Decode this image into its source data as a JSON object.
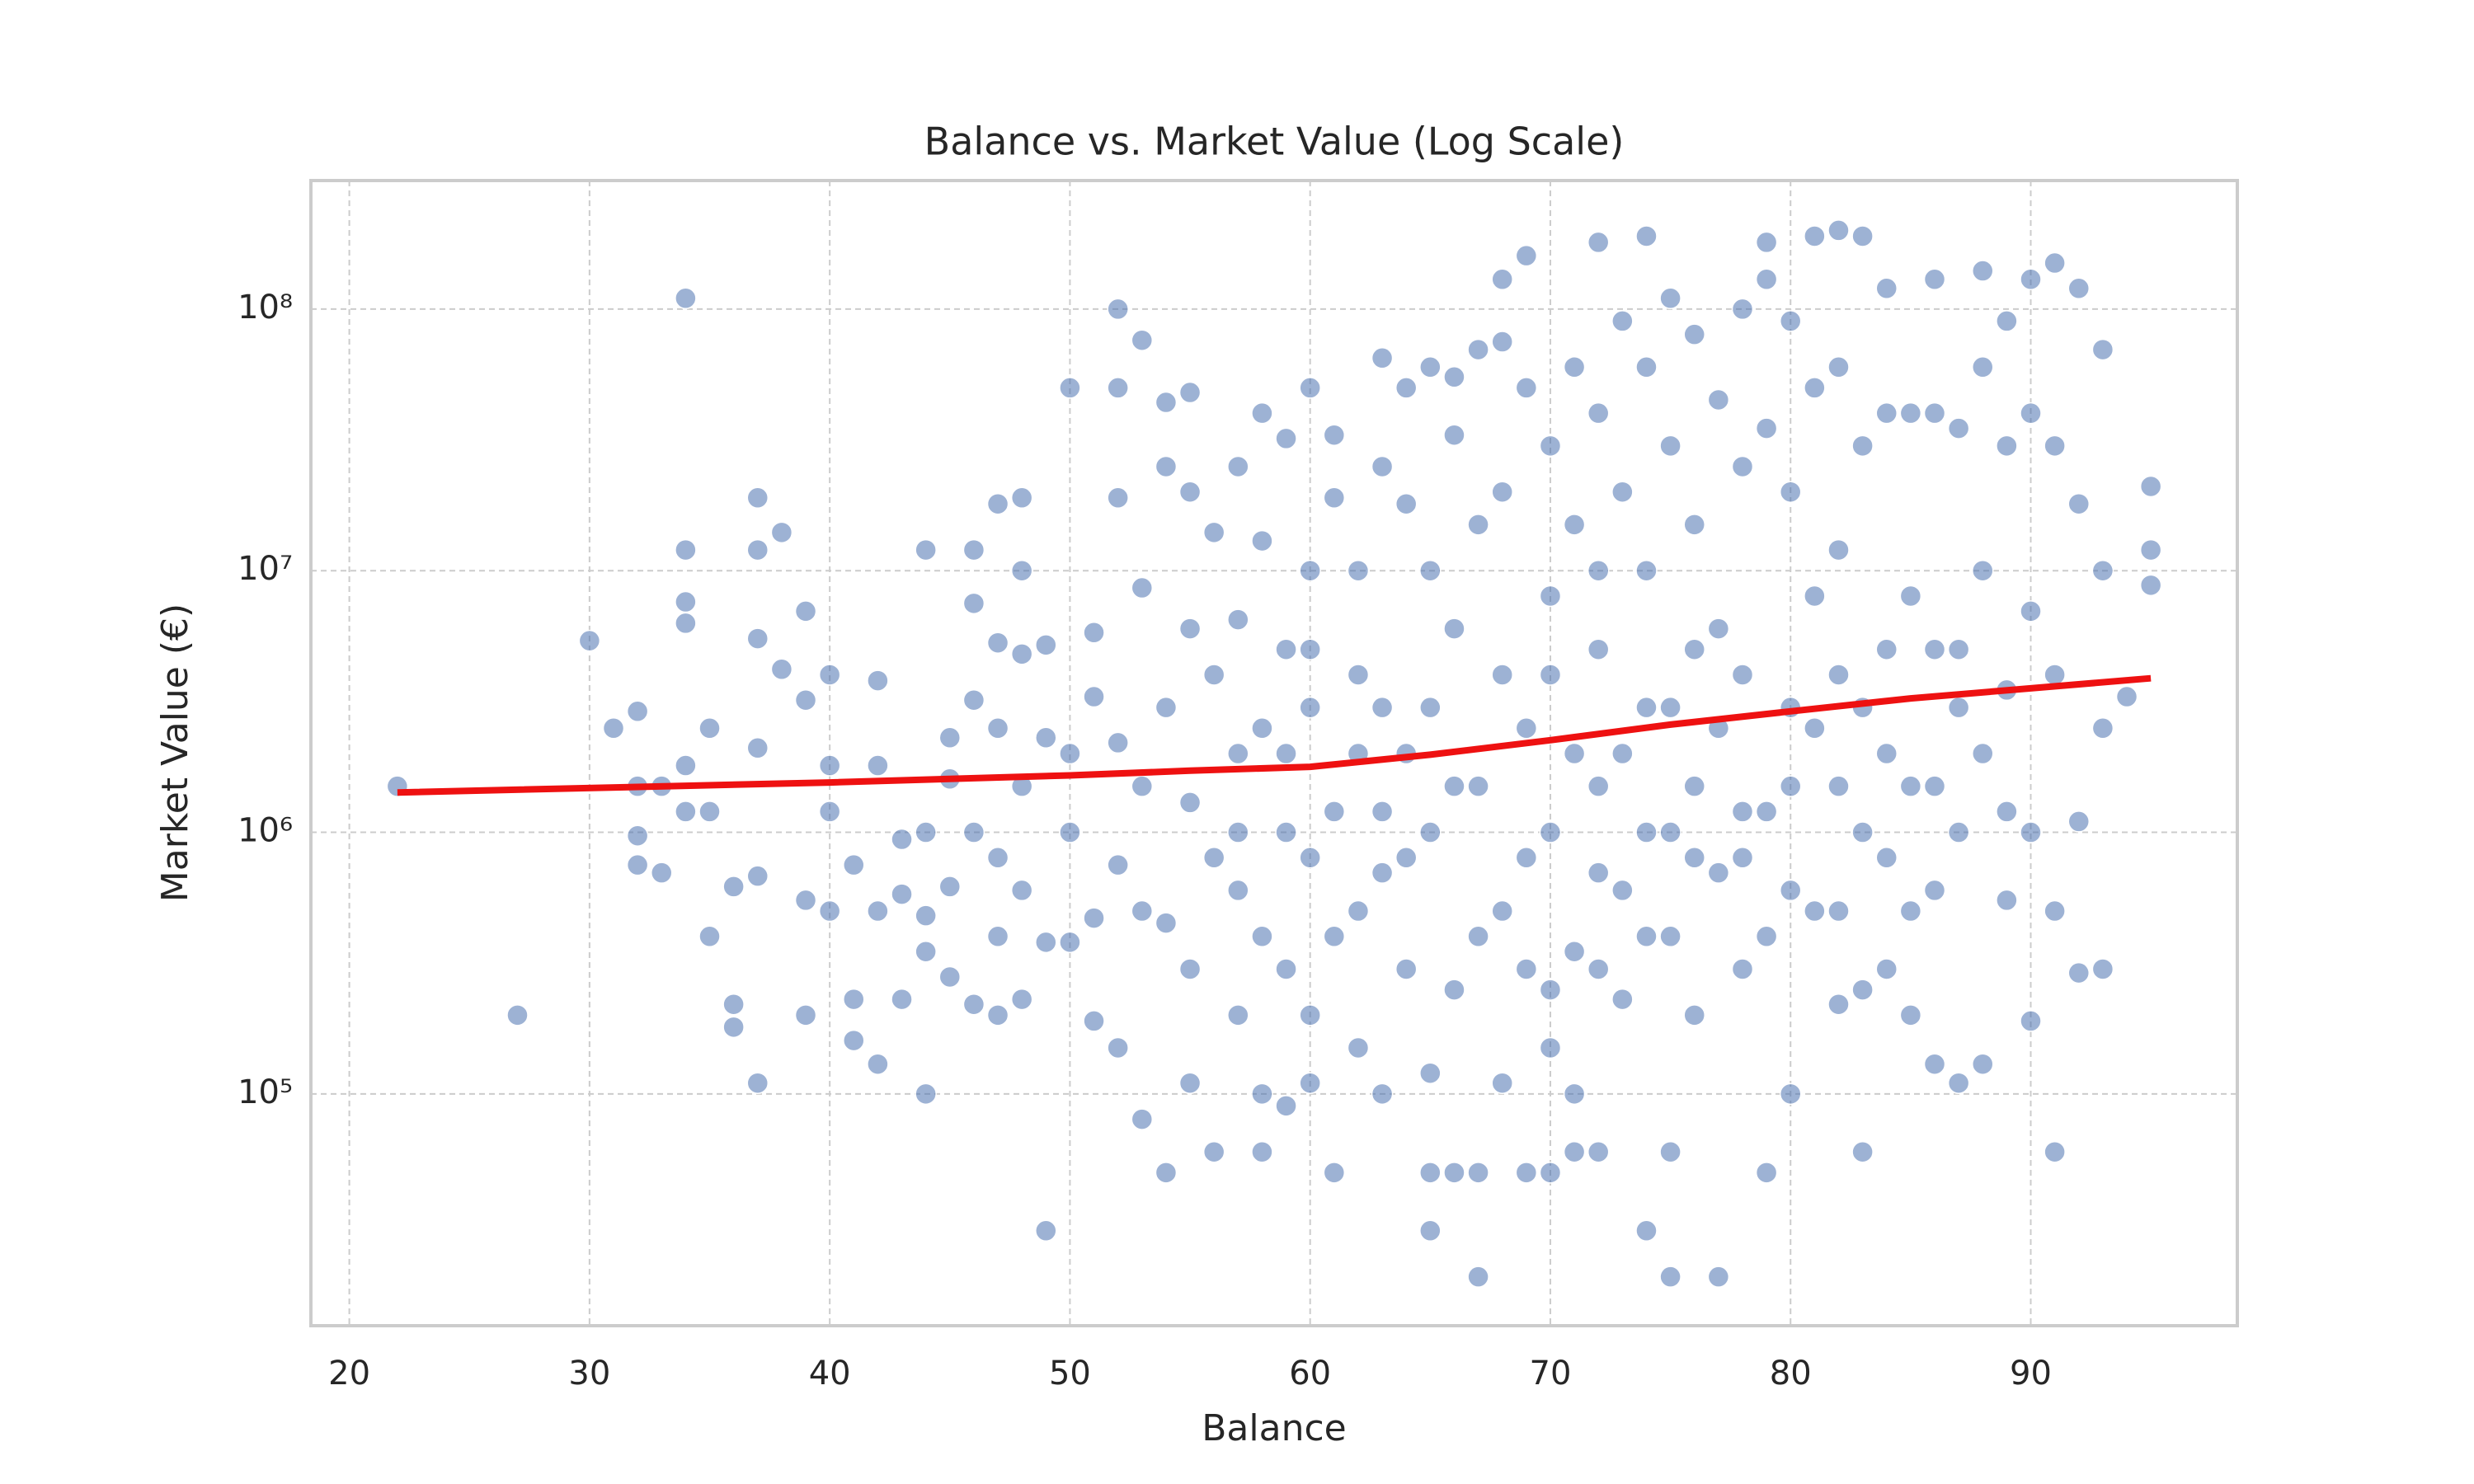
{
  "chart_data": {
    "type": "scatter",
    "title": "Balance vs. Market Value (Log Scale)",
    "x_label": "Balance",
    "y_label": "Market Value (€)",
    "yscale": "log",
    "grid": true,
    "color": "#4c72b0",
    "xlim": [
      18.4,
      98.6
    ],
    "ylim": [
      13000,
      310000000
    ],
    "xticks": [
      20,
      30,
      40,
      50,
      60,
      70,
      80,
      90
    ],
    "yticks": [
      {
        "value": 100000,
        "label": "10⁵"
      },
      {
        "value": 1000000,
        "label": "10⁶"
      },
      {
        "value": 10000000,
        "label": "10⁷"
      },
      {
        "value": 100000000,
        "label": "10⁸"
      }
    ],
    "x": [
      22,
      27,
      30,
      31,
      32,
      32,
      32,
      32,
      33,
      33,
      34,
      34,
      34,
      34,
      34,
      34,
      35,
      35,
      35,
      36,
      36,
      36,
      37,
      37,
      37,
      37,
      37,
      37,
      38,
      38,
      39,
      39,
      39,
      39,
      40,
      40,
      40,
      40,
      41,
      41,
      41,
      42,
      42,
      42,
      42,
      43,
      43,
      43,
      44,
      44,
      44,
      44,
      44,
      45,
      45,
      45,
      45,
      46,
      46,
      46,
      46,
      46,
      47,
      47,
      47,
      47,
      47,
      47,
      48,
      48,
      48,
      48,
      48,
      48,
      49,
      49,
      49,
      49,
      50,
      50,
      50,
      50,
      51,
      51,
      51,
      51,
      52,
      52,
      52,
      52,
      52,
      52,
      53,
      53,
      53,
      53,
      53,
      54,
      54,
      54,
      54,
      54,
      55,
      55,
      55,
      55,
      55,
      55,
      56,
      56,
      56,
      56,
      57,
      57,
      57,
      57,
      57,
      58,
      58,
      58,
      58,
      58,
      58,
      59,
      59,
      59,
      59,
      59,
      60,
      60,
      60,
      60,
      60,
      60,
      61,
      61,
      61,
      61,
      62,
      62,
      62,
      62,
      63,
      63,
      63,
      63,
      63,
      64,
      64,
      64,
      64,
      65,
      65,
      65,
      65,
      65,
      65,
      66,
      66,
      66,
      66,
      66,
      67,
      67,
      67,
      67,
      67,
      68,
      68,
      68,
      68,
      68,
      69,
      69,
      69,
      69,
      69,
      70,
      70,
      70,
      70,
      70,
      71,
      71,
      71,
      71,
      71,
      72,
      72,
      72,
      72,
      72,
      73,
      73,
      73,
      73,
      74,
      74,
      74,
      74,
      74,
      75,
      75,
      75,
      75,
      75,
      75,
      76,
      76,
      76,
      76,
      77,
      77,
      77,
      77,
      78,
      78,
      78,
      78,
      79,
      79,
      79,
      79,
      79,
      80,
      80,
      80,
      80,
      81,
      81,
      81,
      81,
      82,
      82,
      82,
      82,
      82,
      83,
      83,
      83,
      83,
      83,
      84,
      84,
      84,
      84,
      85,
      85,
      85,
      85,
      86,
      86,
      86,
      86,
      86,
      87,
      87,
      87,
      87,
      88,
      88,
      88,
      88,
      88,
      89,
      89,
      89,
      89,
      90,
      90,
      90,
      90,
      90,
      91,
      91,
      91,
      91,
      91,
      92,
      92,
      92,
      92,
      93,
      93,
      93,
      93,
      94,
      95,
      95,
      95,
      60,
      62,
      64,
      66,
      68,
      70,
      72,
      72,
      74,
      74,
      76,
      76,
      78,
      78,
      80,
      80,
      82,
      82,
      84,
      84,
      86,
      73,
      75,
      77,
      71,
      69,
      67,
      65,
      63,
      61,
      59,
      57,
      81,
      79,
      83,
      85,
      87,
      89,
      70,
      72
    ],
    "values": [
      1500000,
      200000,
      5400000,
      2500000,
      2900000,
      1500000,
      970000,
      750000,
      1500000,
      700000,
      110000000,
      12000000,
      7600000,
      6300000,
      1800000,
      1200000,
      2500000,
      1200000,
      400000,
      620000,
      220000,
      180000,
      19000000,
      12000000,
      5500000,
      2100000,
      680000,
      110000,
      14000000,
      4200000,
      7000000,
      3200000,
      550000,
      200000,
      4000000,
      1800000,
      1200000,
      500000,
      750000,
      230000,
      160000,
      3800000,
      1800000,
      500000,
      130000,
      940000,
      580000,
      230000,
      12000000,
      1000000,
      480000,
      350000,
      100000,
      2300000,
      1600000,
      620000,
      280000,
      12000000,
      7500000,
      3200000,
      1000000,
      220000,
      18000000,
      5300000,
      2500000,
      800000,
      400000,
      200000,
      19000000,
      10000000,
      4800000,
      1500000,
      600000,
      230000,
      5200000,
      2300000,
      30000,
      380000,
      50000000,
      2000000,
      1000000,
      380000,
      5800000,
      3300000,
      470000,
      190000,
      100000000,
      50000000,
      19000000,
      2200000,
      750000,
      150000,
      76000000,
      8600000,
      1500000,
      500000,
      80000,
      44000000,
      25000000,
      3000000,
      450000,
      50000,
      48000000,
      20000000,
      6000000,
      1300000,
      300000,
      110000,
      14000000,
      4000000,
      800000,
      60000,
      25000000,
      6500000,
      2000000,
      600000,
      200000,
      40000000,
      13000000,
      2500000,
      400000,
      100000,
      60000,
      32000000,
      5000000,
      1000000,
      300000,
      90000,
      50000000,
      10000000,
      3000000,
      800000,
      200000,
      110000,
      33000000,
      19000000,
      1200000,
      50000,
      10000000,
      4000000,
      500000,
      150000,
      65000000,
      25000000,
      3000000,
      700000,
      100000,
      50000000,
      18000000,
      2000000,
      300000,
      60000000,
      10000000,
      1000000,
      120000,
      30000,
      50000,
      55000000,
      33000000,
      6000000,
      250000,
      50000,
      70000000,
      15000000,
      1500000,
      20000,
      50000,
      130000000,
      75000000,
      4000000,
      500000,
      110000,
      160000000,
      50000000,
      2500000,
      300000,
      50000,
      30000000,
      8000000,
      1000000,
      150000,
      50000,
      60000000,
      15000000,
      2000000,
      100000,
      60000,
      180000000,
      40000000,
      5000000,
      700000,
      60000,
      90000000,
      20000000,
      2000000,
      230000,
      190000000,
      60000000,
      10000000,
      1000000,
      30000,
      110000000,
      30000000,
      3000000,
      400000,
      20000,
      60000,
      80000000,
      15000000,
      1500000,
      200000,
      45000000,
      6000000,
      700000,
      20000,
      100000000,
      25000000,
      4000000,
      300000,
      180000000,
      130000000,
      35000000,
      1200000,
      50000,
      90000000,
      20000000,
      3000000,
      100000,
      190000000,
      50000000,
      8000000,
      500000,
      200000000,
      60000000,
      12000000,
      1500000,
      220000,
      190000000,
      30000000,
      3000000,
      250000,
      60000,
      120000000,
      40000000,
      5000000,
      800000,
      40000000,
      8000000,
      1500000,
      200000,
      130000000,
      40000000,
      5000000,
      600000,
      130000,
      35000000,
      5000000,
      1000000,
      110000,
      140000000,
      60000000,
      10000000,
      2000000,
      130000,
      90000000,
      30000000,
      3500000,
      550000,
      130000000,
      40000000,
      7000000,
      1000000,
      190000,
      150000000,
      30000000,
      4000000,
      500000,
      60000,
      120000000,
      18000000,
      1100000,
      290000,
      70000000,
      10000000,
      2500000,
      300000,
      3300000,
      21000000,
      12000000,
      8800000,
      5000000,
      2000000,
      800000,
      1500000,
      20000000,
      4000000,
      1500000,
      300000,
      3000000,
      400000,
      5000000,
      800000,
      1200000,
      800000,
      600000,
      1500000,
      4000000,
      500000,
      2000000,
      300000,
      1500000,
      600000,
      1000000,
      2500000,
      350000,
      800000,
      400000,
      3000000,
      1200000,
      400000,
      2000000,
      1000000,
      2500000,
      400000,
      1000000,
      500000,
      3000000,
      1200000,
      250000,
      10000000
    ],
    "trend": {
      "color": "#ee1111",
      "x": [
        22,
        40,
        50,
        55,
        60,
        65,
        70,
        75,
        80,
        85,
        90,
        95
      ],
      "values": [
        1420000,
        1550000,
        1650000,
        1720000,
        1780000,
        1980000,
        2250000,
        2580000,
        2900000,
        3250000,
        3550000,
        3880000
      ]
    }
  }
}
